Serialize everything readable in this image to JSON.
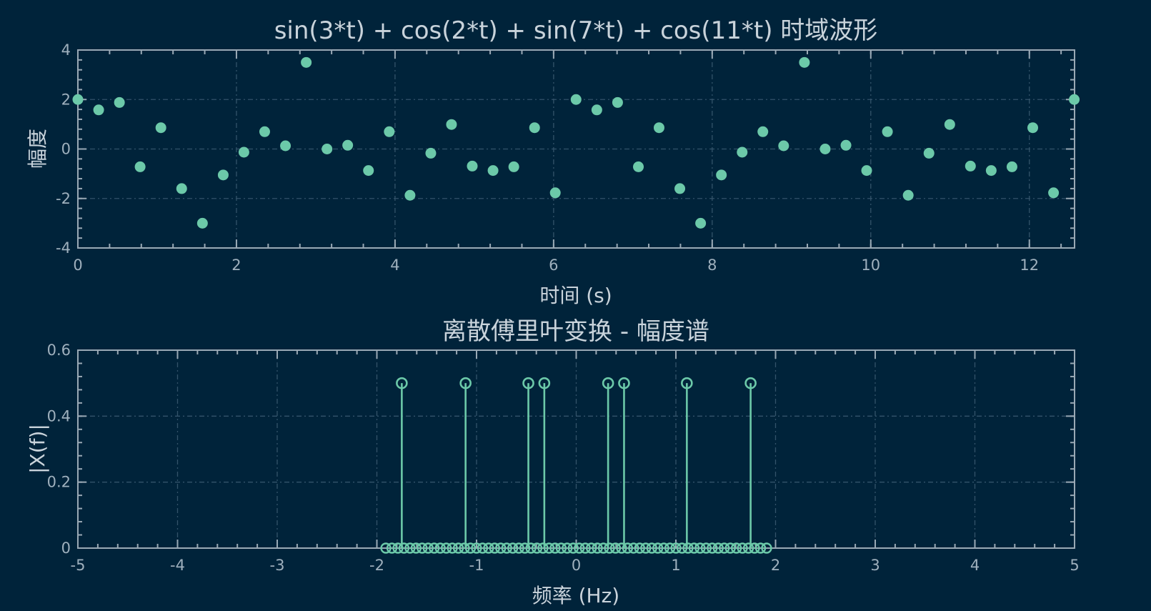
{
  "colors": {
    "background": "#00233a",
    "marker": "#6cc9a9",
    "text": "#c9d3db",
    "axis": "#9aa9b5",
    "grid": "#33536a"
  },
  "chart_data": [
    {
      "type": "scatter",
      "title": "sin(3*t) + cos(2*t) + sin(7*t) + cos(11*t) 时域波形",
      "xlabel": "时间 (s)",
      "ylabel": "幅度",
      "xlim": [
        0,
        12.57
      ],
      "ylim": [
        -4,
        4
      ],
      "xticks": [
        "0",
        "2",
        "4",
        "6",
        "8",
        "10",
        "12"
      ],
      "yticks": [
        "-4",
        "-2",
        "0",
        "2",
        "4"
      ],
      "grid": true,
      "series": [
        {
          "x": [
            0,
            0.262,
            0.524,
            0.785,
            1.047,
            1.309,
            1.571,
            1.833,
            2.094,
            2.356,
            2.618,
            2.88,
            3.142,
            3.403,
            3.665,
            3.927,
            4.189,
            4.451,
            4.712,
            4.974,
            5.236,
            5.498,
            5.76,
            6.021,
            6.283,
            6.545,
            6.807,
            7.069,
            7.33,
            7.592,
            7.854,
            8.116,
            8.378,
            8.639,
            8.901,
            9.163,
            9.425,
            9.687,
            9.948,
            10.21,
            10.472,
            10.734,
            10.996,
            11.257,
            11.519,
            11.781,
            12.043,
            12.305,
            12.566
          ],
          "values": [
            2.0,
            1.58,
            1.88,
            -0.72,
            0.86,
            -1.6,
            -3.0,
            -1.05,
            -0.13,
            0.7,
            0.13,
            3.5,
            0.0,
            0.15,
            -0.87,
            0.7,
            -1.87,
            -0.17,
            0.99,
            -0.69,
            -0.87,
            -0.72,
            0.86,
            -1.77,
            2.0,
            1.58,
            1.88,
            -0.72,
            0.86,
            -1.6,
            -3.0,
            -1.05,
            -0.13,
            0.7,
            0.13,
            3.5,
            0.0,
            0.15,
            -0.87,
            0.7,
            -1.87,
            -0.17,
            0.99,
            -0.69,
            -0.87,
            -0.72,
            0.86,
            -1.77,
            2.0
          ]
        }
      ]
    },
    {
      "type": "stem",
      "title": "离散傅里叶变换 - 幅度谱",
      "xlabel": "频率 (Hz)",
      "ylabel": "|X(f)|",
      "xlim": [
        -5,
        5
      ],
      "ylim": [
        0,
        0.6
      ],
      "xticks": [
        "-5",
        "-4",
        "-3",
        "-2",
        "-1",
        "0",
        "1",
        "2",
        "3",
        "4",
        "5"
      ],
      "yticks": [
        "0",
        "0.2",
        "0.4",
        "0.6"
      ],
      "grid": true,
      "baseline_range": [
        -1.91,
        1.91
      ],
      "baseline_count": 64,
      "series": [
        {
          "x": [
            -1.75,
            -1.11,
            -0.48,
            -0.32,
            0.32,
            0.48,
            1.11,
            1.75
          ],
          "values": [
            0.5,
            0.5,
            0.5,
            0.5,
            0.5,
            0.5,
            0.5,
            0.5
          ]
        }
      ]
    }
  ]
}
